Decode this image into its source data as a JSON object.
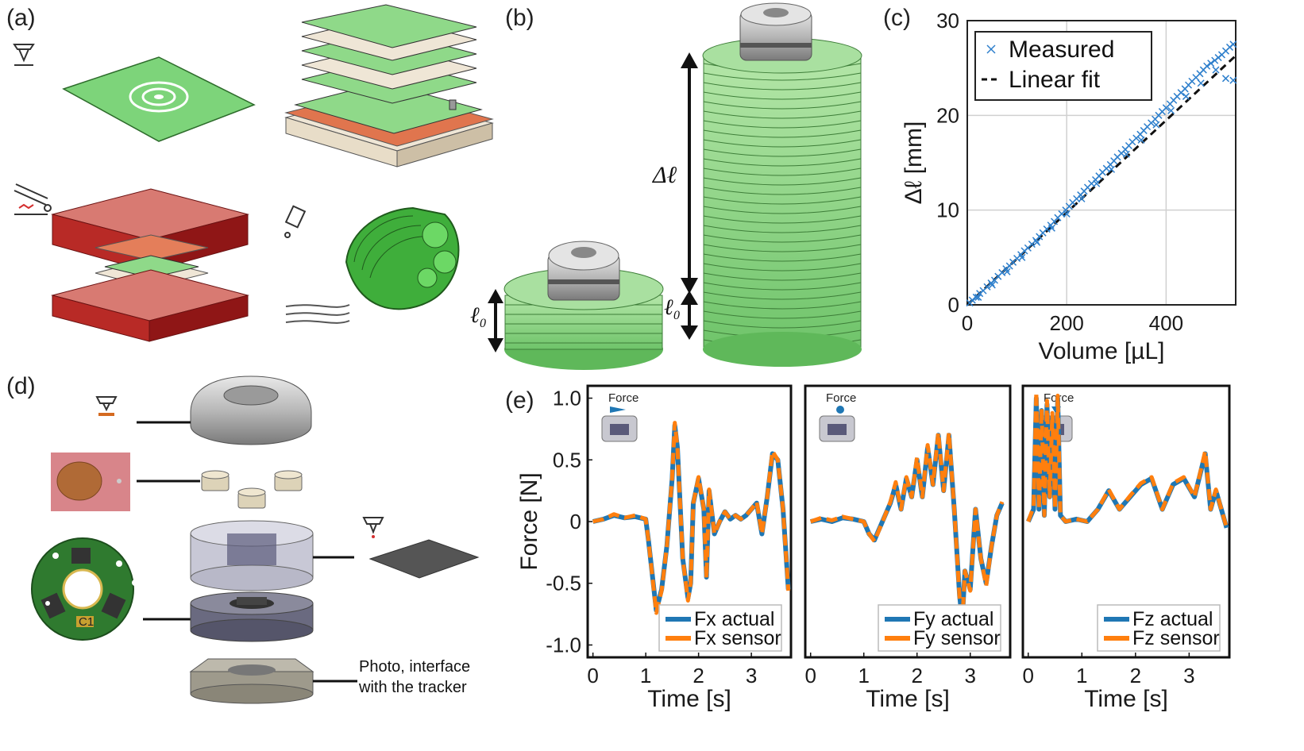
{
  "panel_labels": {
    "a": "(a)",
    "b": "(b)",
    "c": "(c)",
    "d": "(d)",
    "e": "(e)"
  },
  "panel_b": {
    "delta_label": "Δℓ",
    "l0_label": "ℓ",
    "l0_sub": "0"
  },
  "panel_d": {
    "caption_line1": "Photo, interface",
    "caption_line2": "with the tracker",
    "pcb_label": "C1"
  },
  "chart_data": [
    {
      "type": "scatter",
      "panel": "(c)",
      "xlabel": "Volume [µL]",
      "ylabel": "Δℓ [mm]",
      "xlim": [
        0,
        540
      ],
      "ylim": [
        0,
        30
      ],
      "xticks": [
        0,
        200,
        400
      ],
      "yticks": [
        0,
        10,
        20,
        30
      ],
      "grid": true,
      "legend_position": "top-left",
      "colors": {
        "measured": "#2e7fcc",
        "fit": "#111111"
      },
      "series": [
        {
          "name": "Measured",
          "marker": "x",
          "points": [
            [
              5,
              0.2
            ],
            [
              10,
              0.5
            ],
            [
              18,
              0.8
            ],
            [
              25,
              1.2
            ],
            [
              32,
              1.5
            ],
            [
              40,
              1.9
            ],
            [
              48,
              2.3
            ],
            [
              55,
              2.6
            ],
            [
              62,
              3.0
            ],
            [
              70,
              3.4
            ],
            [
              78,
              3.8
            ],
            [
              85,
              4.1
            ],
            [
              92,
              4.5
            ],
            [
              100,
              4.9
            ],
            [
              108,
              5.3
            ],
            [
              115,
              5.7
            ],
            [
              122,
              6.0
            ],
            [
              130,
              6.4
            ],
            [
              138,
              6.8
            ],
            [
              145,
              7.2
            ],
            [
              152,
              7.6
            ],
            [
              160,
              8.0
            ],
            [
              168,
              8.4
            ],
            [
              175,
              8.8
            ],
            [
              182,
              9.2
            ],
            [
              190,
              9.6
            ],
            [
              198,
              10.0
            ],
            [
              205,
              10.4
            ],
            [
              212,
              10.8
            ],
            [
              220,
              11.2
            ],
            [
              228,
              11.6
            ],
            [
              235,
              12.0
            ],
            [
              242,
              12.4
            ],
            [
              250,
              12.8
            ],
            [
              258,
              13.2
            ],
            [
              265,
              13.6
            ],
            [
              272,
              14.0
            ],
            [
              280,
              14.4
            ],
            [
              288,
              14.8
            ],
            [
              295,
              15.2
            ],
            [
              302,
              15.6
            ],
            [
              310,
              16.0
            ],
            [
              318,
              16.4
            ],
            [
              325,
              16.8
            ],
            [
              332,
              17.2
            ],
            [
              340,
              17.6
            ],
            [
              348,
              18.0
            ],
            [
              355,
              18.4
            ],
            [
              362,
              18.8
            ],
            [
              370,
              19.2
            ],
            [
              378,
              19.6
            ],
            [
              385,
              20.0
            ],
            [
              392,
              20.4
            ],
            [
              400,
              20.8
            ],
            [
              408,
              21.2
            ],
            [
              415,
              21.6
            ],
            [
              422,
              22.0
            ],
            [
              430,
              22.4
            ],
            [
              438,
              22.8
            ],
            [
              445,
              23.2
            ],
            [
              452,
              23.6
            ],
            [
              460,
              24.0
            ],
            [
              468,
              24.4
            ],
            [
              475,
              24.8
            ],
            [
              482,
              25.2
            ],
            [
              490,
              25.5
            ],
            [
              498,
              25.8
            ],
            [
              505,
              26.1
            ],
            [
              512,
              26.4
            ],
            [
              520,
              26.8
            ],
            [
              528,
              27.2
            ],
            [
              535,
              27.5
            ],
            [
              22,
              0.8
            ],
            [
              50,
              2.1
            ],
            [
              80,
              3.5
            ],
            [
              110,
              5.0
            ],
            [
              140,
              6.6
            ],
            [
              170,
              8.1
            ],
            [
              200,
              9.6
            ],
            [
              230,
              11.2
            ],
            [
              260,
              12.8
            ],
            [
              290,
              14.3
            ],
            [
              320,
              15.9
            ],
            [
              350,
              17.4
            ],
            [
              380,
              19.0
            ],
            [
              410,
              20.5
            ],
            [
              440,
              22.0
            ],
            [
              470,
              23.4
            ],
            [
              500,
              24.8
            ],
            [
              520,
              23.9
            ],
            [
              535,
              23.7
            ]
          ]
        },
        {
          "name": "Linear fit",
          "style": "dashed",
          "x": [
            0,
            540
          ],
          "y": [
            0,
            26.3
          ]
        }
      ]
    },
    {
      "type": "line",
      "panel": "(e)",
      "ylabel": "Force [N]",
      "xlabel": "Time [s]",
      "ylim": [
        -1.1,
        1.1
      ],
      "yticks": [
        1.0,
        0.5,
        0,
        -0.5,
        -1.0
      ],
      "ytick_labels": [
        "1.0",
        "0.5",
        "0",
        "-0.5",
        "-1.0"
      ],
      "xticks": [
        0,
        1,
        2,
        3
      ],
      "xlim": [
        -0.1,
        3.75
      ],
      "colors": {
        "actual": "#1f77b4",
        "sensor": "#ff7f0e"
      },
      "subplots": [
        {
          "inset_label": "Force",
          "legend": [
            "Fx actual",
            "Fx sensor"
          ],
          "x": [
            0,
            0.2,
            0.4,
            0.6,
            0.8,
            1.0,
            1.05,
            1.2,
            1.3,
            1.4,
            1.5,
            1.55,
            1.6,
            1.7,
            1.8,
            1.85,
            1.9,
            2.0,
            2.1,
            2.15,
            2.2,
            2.3,
            2.4,
            2.5,
            2.6,
            2.7,
            2.8,
            2.9,
            3.0,
            3.1,
            3.2,
            3.3,
            3.4,
            3.5,
            3.6,
            3.7
          ],
          "actual": [
            0,
            0.02,
            0.05,
            0.03,
            0.04,
            0.02,
            -0.15,
            -0.72,
            -0.55,
            -0.2,
            0.35,
            0.78,
            0.6,
            -0.3,
            -0.62,
            -0.5,
            0.15,
            0.35,
            0.1,
            -0.45,
            0.25,
            -0.1,
            0.0,
            0.08,
            0.02,
            0.05,
            0.02,
            0.05,
            0.1,
            0.15,
            -0.1,
            0.2,
            0.55,
            0.5,
            0.1,
            -0.55
          ],
          "sensor": [
            0,
            0.02,
            0.06,
            0.03,
            0.05,
            0.02,
            -0.15,
            -0.74,
            -0.56,
            -0.2,
            0.36,
            0.8,
            0.6,
            -0.3,
            -0.64,
            -0.5,
            0.15,
            0.36,
            0.1,
            -0.46,
            0.26,
            -0.1,
            0.0,
            0.08,
            0.02,
            0.05,
            0.02,
            0.05,
            0.1,
            0.16,
            -0.1,
            0.2,
            0.57,
            0.5,
            0.1,
            -0.56
          ]
        },
        {
          "inset_label": "Force",
          "legend": [
            "Fy actual",
            "Fy sensor"
          ],
          "x": [
            0,
            0.2,
            0.4,
            0.6,
            0.8,
            1.0,
            1.1,
            1.2,
            1.4,
            1.5,
            1.6,
            1.7,
            1.8,
            1.9,
            2.0,
            2.1,
            2.2,
            2.3,
            2.4,
            2.5,
            2.6,
            2.7,
            2.8,
            2.85,
            2.9,
            3.0,
            3.1,
            3.2,
            3.3,
            3.4,
            3.5,
            3.6
          ],
          "actual": [
            0,
            0.02,
            0.0,
            0.03,
            0.02,
            0.0,
            -0.1,
            -0.15,
            0.05,
            0.15,
            0.3,
            0.1,
            0.35,
            0.2,
            0.5,
            0.2,
            0.6,
            0.3,
            0.7,
            0.25,
            0.7,
            0.1,
            -0.6,
            -0.8,
            -0.4,
            -0.55,
            0.1,
            -0.3,
            -0.5,
            -0.2,
            0.05,
            0.15
          ],
          "sensor": [
            0,
            0.03,
            0.01,
            0.04,
            0.02,
            0.0,
            -0.1,
            -0.16,
            0.05,
            0.16,
            0.32,
            0.1,
            0.36,
            0.2,
            0.52,
            0.2,
            0.62,
            0.3,
            0.72,
            0.25,
            0.72,
            0.1,
            -0.62,
            -0.82,
            -0.4,
            -0.56,
            0.1,
            -0.3,
            -0.52,
            -0.2,
            0.05,
            0.16
          ]
        },
        {
          "inset_label": "Force",
          "legend": [
            "Fz actual",
            "Fz sensor"
          ],
          "x": [
            0,
            0.1,
            0.15,
            0.2,
            0.25,
            0.3,
            0.35,
            0.4,
            0.45,
            0.5,
            0.55,
            0.6,
            0.7,
            0.9,
            1.1,
            1.3,
            1.5,
            1.7,
            1.9,
            2.1,
            2.3,
            2.5,
            2.7,
            2.9,
            3.1,
            3.3,
            3.4,
            3.5,
            3.6,
            3.7
          ],
          "actual": [
            0,
            0.1,
            1.0,
            0.1,
            0.9,
            0.05,
            0.95,
            0.2,
            0.85,
            0.1,
            1.0,
            0.05,
            0.0,
            0.02,
            0.0,
            0.1,
            0.25,
            0.1,
            0.2,
            0.3,
            0.35,
            0.1,
            0.3,
            0.35,
            0.2,
            0.55,
            0.1,
            0.25,
            0.1,
            -0.05
          ],
          "sensor": [
            0,
            0.12,
            1.05,
            0.1,
            0.92,
            0.05,
            0.98,
            0.2,
            0.88,
            0.1,
            1.02,
            0.05,
            0.0,
            0.02,
            0.0,
            0.1,
            0.26,
            0.1,
            0.21,
            0.31,
            0.36,
            0.1,
            0.31,
            0.36,
            0.2,
            0.57,
            0.1,
            0.26,
            0.1,
            -0.05
          ]
        }
      ]
    }
  ]
}
